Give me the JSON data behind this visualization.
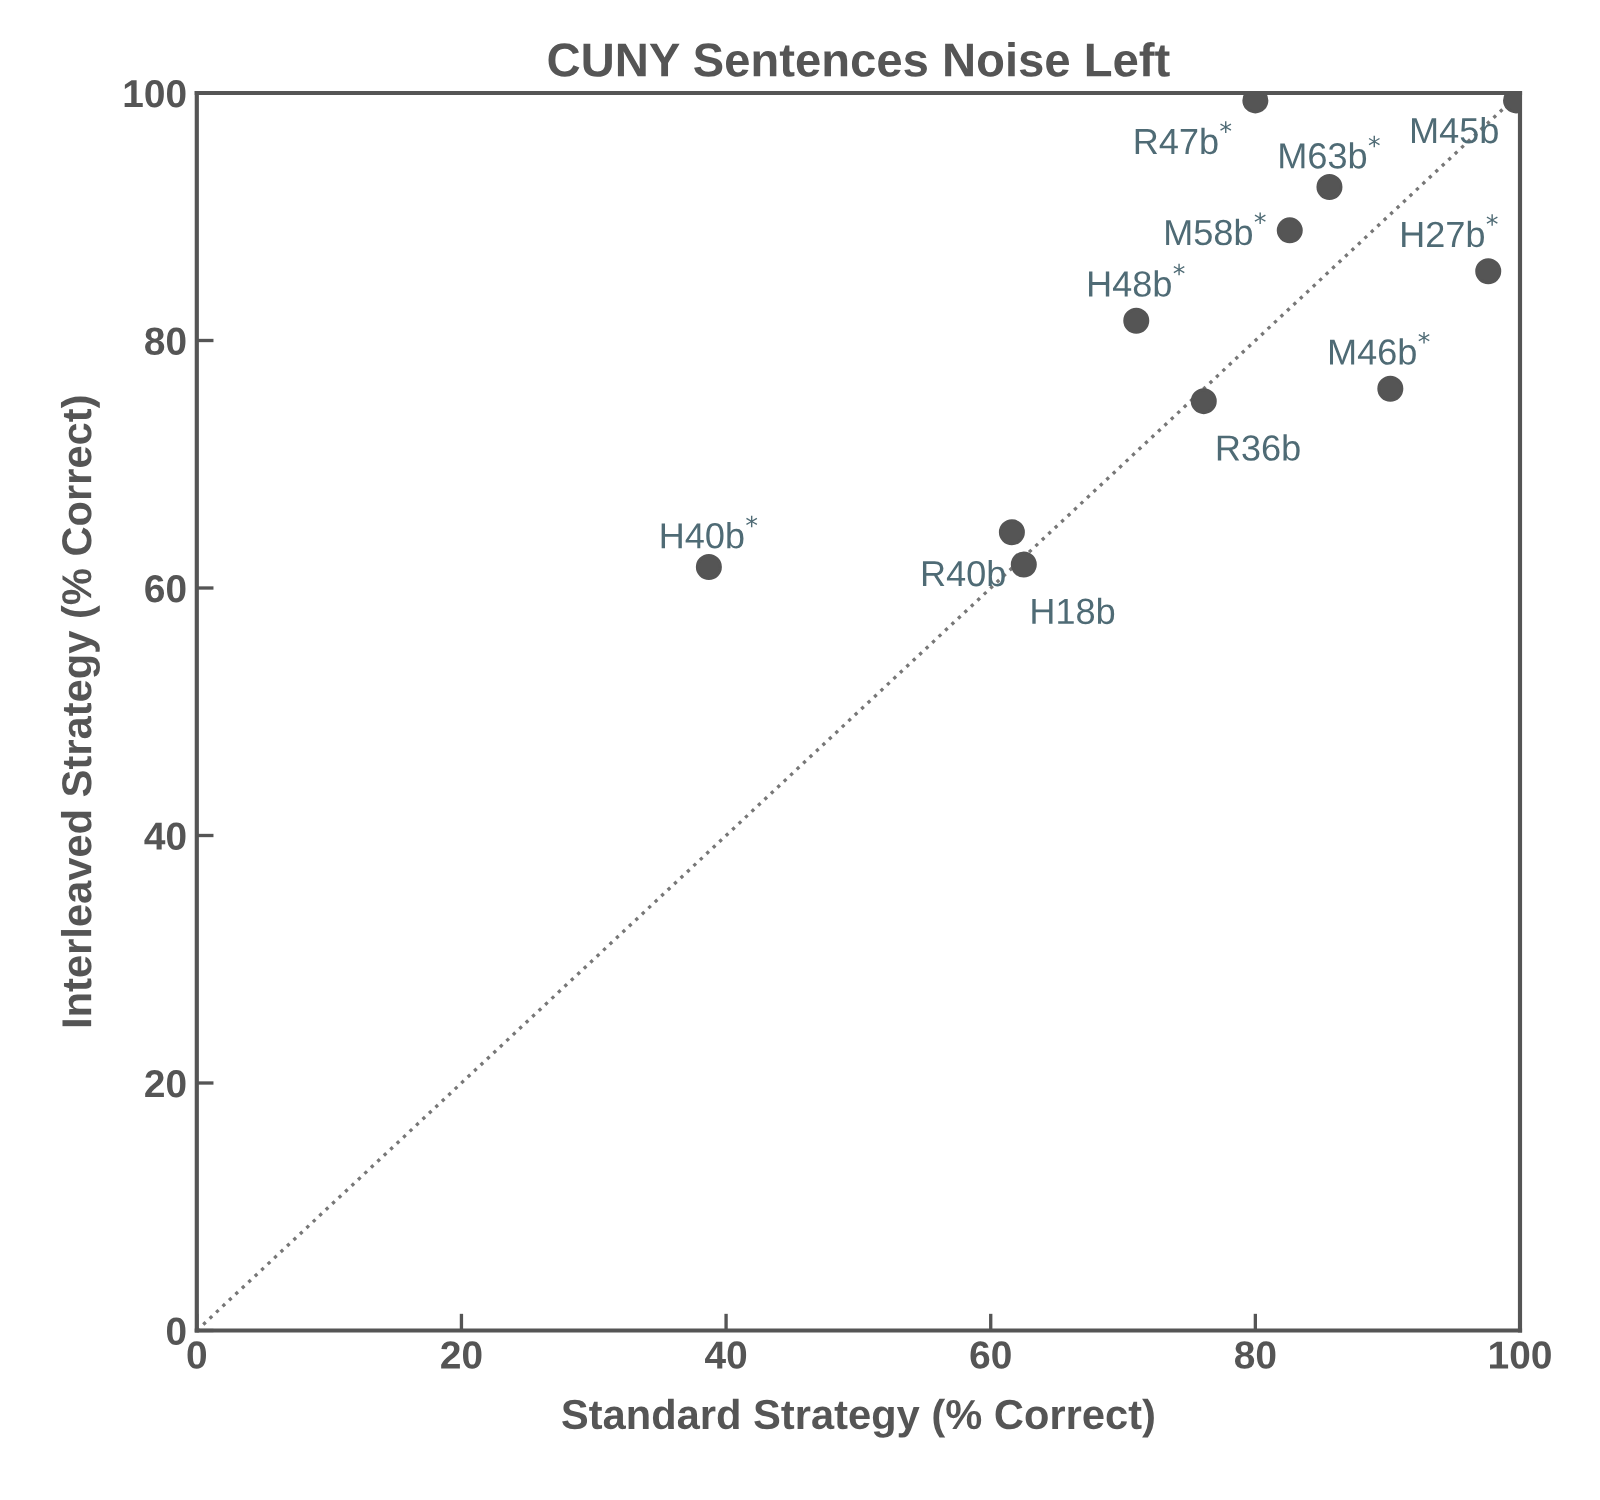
{
  "chart_data": {
    "type": "scatter",
    "title": "CUNY Sentences Noise Left",
    "xlabel": "Standard Strategy (% Correct)",
    "ylabel": "Interleaved Strategy (% Correct)",
    "xlim": [
      0,
      100
    ],
    "ylim": [
      0,
      100
    ],
    "xticks": [
      0,
      20,
      40,
      60,
      80,
      100
    ],
    "yticks": [
      0,
      20,
      40,
      60,
      80,
      100
    ],
    "grid": false,
    "legend": false,
    "series": [
      {
        "color": "#555555",
        "marker": "circle",
        "x": [
          80,
          99.7,
          85.6,
          82.6,
          97.6,
          71,
          76.1,
          90.2,
          38.7,
          61.6,
          62.5
        ],
        "values": [
          99.4,
          99.4,
          92.4,
          88.9,
          85.6,
          81.6,
          75.1,
          76.1,
          61.7,
          64.5,
          61.9
        ]
      },
      {
        "type": "line",
        "color": "#777777",
        "line_style": "dotted",
        "x": [
          0,
          100
        ],
        "values": [
          0,
          100
        ]
      }
    ],
    "annotations": [
      {
        "text": "R47b$^{*}$",
        "x": 80,
        "y": 99.4
      },
      {
        "text": "M45b",
        "x": 99.7,
        "y": 99.4
      },
      {
        "text": "M63b$^{*}$",
        "x": 85.6,
        "y": 92.4
      },
      {
        "text": "M58b$^{*}$",
        "x": 82.6,
        "y": 88.9
      },
      {
        "text": "H27b$^{*}$",
        "x": 97.6,
        "y": 85.6
      },
      {
        "text": "H48b$^{*}$",
        "x": 71,
        "y": 81.6
      },
      {
        "text": "R36b",
        "x": 76.1,
        "y": 75.1
      },
      {
        "text": "M46b$^{*}$",
        "x": 90.2,
        "y": 76.1
      },
      {
        "text": "H40b$^{*}$",
        "x": 38.7,
        "y": 61.7
      },
      {
        "text": "R40b",
        "x": 61.6,
        "y": 64.5
      },
      {
        "text": "H18b",
        "x": 62.5,
        "y": 61.9
      }
    ]
  }
}
